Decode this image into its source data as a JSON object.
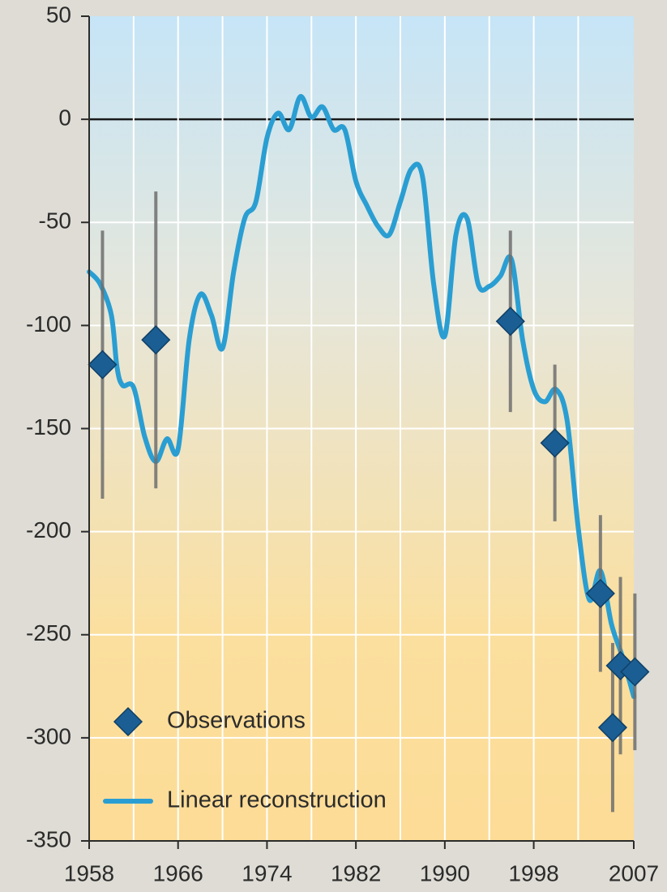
{
  "chart_data": {
    "type": "line",
    "xlim": [
      1958,
      2007
    ],
    "xticks": [
      1958,
      1966,
      1974,
      1982,
      1990,
      1998,
      2007
    ],
    "xgrid": [
      1962,
      1966,
      1970,
      1974,
      1978,
      1982,
      1986,
      1990,
      1994,
      1998,
      2002
    ],
    "ylim": [
      -350,
      50
    ],
    "yticks": [
      50,
      0,
      -50,
      -100,
      -150,
      -200,
      -250,
      -300,
      -350
    ],
    "grid": true,
    "legend": "lower left",
    "series": [
      {
        "name": "Observations",
        "type": "scatter",
        "color": "#1b5e93",
        "x": [
          1959.2,
          1964.0,
          1995.9,
          1999.9,
          2004.0,
          2005.1,
          2005.8,
          2007.1
        ],
        "values": [
          -119,
          -107,
          -98,
          -157,
          -230,
          -295,
          -265,
          -268
        ],
        "errors": [
          65,
          72,
          44,
          38,
          38,
          41,
          43,
          38
        ]
      },
      {
        "name": "Linear reconstruction",
        "type": "line",
        "color": "#2a9ed2",
        "x": [
          1958,
          1959,
          1960,
          1960.5,
          1961,
          1962,
          1963,
          1964,
          1965,
          1966,
          1967,
          1968,
          1969,
          1970,
          1971,
          1972,
          1973,
          1974,
          1975,
          1976,
          1977,
          1978,
          1979,
          1980,
          1981,
          1982,
          1983,
          1984,
          1985,
          1986,
          1987,
          1988,
          1989,
          1990,
          1991,
          1992,
          1993,
          1994,
          1995,
          1996,
          1997,
          1998,
          1999,
          2000,
          2001,
          2002,
          2003,
          2004,
          2005,
          2006,
          2007
        ],
        "values": [
          -74,
          -80,
          -95,
          -120,
          -129,
          -130,
          -154,
          -166,
          -155,
          -160,
          -107,
          -85,
          -95,
          -111,
          -74,
          -48,
          -40,
          -9,
          3,
          -5,
          11,
          1,
          6,
          -5,
          -5,
          -30,
          -42,
          -52,
          -56,
          -40,
          -24,
          -28,
          -80,
          -105,
          -56,
          -48,
          -80,
          -81,
          -76,
          -68,
          -107,
          -131,
          -137,
          -131,
          -146,
          -198,
          -233,
          -219,
          -245,
          -261,
          -280
        ]
      }
    ]
  }
}
